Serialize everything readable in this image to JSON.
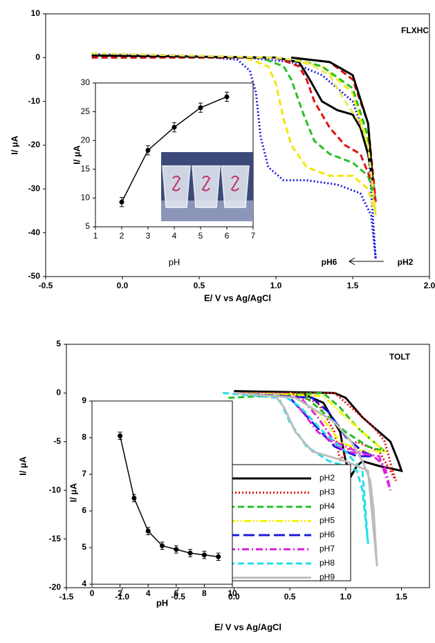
{
  "chart_data": [
    {
      "type": "line",
      "xlabel": "E/ V  vs Ag/AgCl",
      "ylabel": "I/ µA",
      "annotations": [
        "FLXHC",
        "pH6",
        "pH2"
      ],
      "xlim": [
        -0.5,
        2.0
      ],
      "ylim": [
        -50,
        10
      ],
      "xticks": [
        -0.5,
        {
          "value": 0,
          "label": "0.0"
        },
        0.5,
        {
          "value": 1,
          "label": "1.0"
        },
        1.5,
        {
          "value": 2,
          "label": "2.0"
        }
      ],
      "yticks": [
        -50,
        -40,
        -30,
        -20,
        -10,
        0,
        10
      ],
      "grid": false,
      "series": [
        {
          "color": "#1a1adc",
          "style": "dotted",
          "x": [
            -0.2,
            0.5,
            0.75,
            0.83,
            0.87,
            0.9,
            0.95,
            1.05,
            1.2,
            1.4,
            1.55,
            1.62,
            1.65,
            1.6,
            1.5,
            1.3,
            1.1,
            0.8
          ],
          "values": [
            0.8,
            0.3,
            -0.5,
            -3,
            -8,
            -18,
            -25,
            -28,
            -28,
            -29,
            -31,
            -36,
            -46,
            -20,
            -10,
            -4,
            -1,
            0
          ]
        },
        {
          "color": "#f5e600",
          "style": "dashed",
          "x": [
            -0.2,
            0.8,
            0.95,
            1.0,
            1.05,
            1.1,
            1.2,
            1.35,
            1.5,
            1.6,
            1.65,
            1.6,
            1.5,
            1.3,
            1.0
          ],
          "values": [
            0.5,
            0,
            -2,
            -6,
            -14,
            -20,
            -25,
            -27,
            -27,
            -30,
            -36,
            -20,
            -8,
            -2,
            0
          ]
        },
        {
          "color": "#22c022",
          "style": "dashed",
          "x": [
            -0.2,
            0.9,
            1.05,
            1.1,
            1.18,
            1.25,
            1.35,
            1.5,
            1.6,
            1.65,
            1.6,
            1.5,
            1.3,
            1.1
          ],
          "values": [
            0,
            0,
            -2,
            -5,
            -13,
            -19,
            -22,
            -24,
            -27,
            -33,
            -18,
            -7,
            -2,
            0
          ]
        },
        {
          "color": "#e01010",
          "style": "dashed",
          "x": [
            -0.2,
            1.0,
            1.15,
            1.2,
            1.25,
            1.35,
            1.45,
            1.55,
            1.62,
            1.65,
            1.6,
            1.5,
            1.35,
            1.1
          ],
          "values": [
            0,
            0,
            -2,
            -5,
            -10,
            -16,
            -20,
            -22,
            -28,
            -33,
            -15,
            -5,
            -1,
            0
          ]
        },
        {
          "color": "#000000",
          "style": "solid",
          "x": [
            -0.2,
            1.0,
            1.15,
            1.22,
            1.3,
            1.4,
            1.5,
            1.55,
            1.6,
            1.63,
            1.6,
            1.5,
            1.35,
            1.1
          ],
          "values": [
            0.5,
            0,
            -1,
            -5,
            -10,
            -12,
            -13,
            -16,
            -22,
            -28,
            -15,
            -4,
            -1,
            0
          ]
        },
        {
          "color": "#e8e860",
          "style": "dashed",
          "x": [
            -0.2,
            1.0,
            1.2,
            1.35,
            1.45,
            1.55,
            1.6,
            1.65
          ],
          "values": [
            1,
            0,
            -1,
            -4,
            -10,
            -15,
            -20,
            -36
          ]
        }
      ]
    },
    {
      "type": "line",
      "xlabel": "pH",
      "ylabel": "I/ µA",
      "xlim": [
        1,
        7
      ],
      "ylim": [
        5,
        30
      ],
      "xticks": [
        1,
        2,
        3,
        4,
        5,
        6,
        7
      ],
      "yticks": [
        5,
        10,
        15,
        20,
        25,
        30
      ],
      "marker": "circle",
      "color": "#000000",
      "x": [
        2,
        3,
        4,
        5,
        6
      ],
      "values": [
        9.3,
        18.3,
        22.3,
        25.7,
        27.6
      ],
      "errors": [
        0.8,
        0.8,
        0.8,
        0.8,
        0.8
      ]
    },
    {
      "type": "line",
      "xlabel": "E/ V vs Ag/AgCl",
      "ylabel": "I/ µA",
      "annotations": [
        "TOLT"
      ],
      "xlim": [
        -1.5,
        1.75
      ],
      "ylim": [
        -20,
        5
      ],
      "xticks": [
        -1.5,
        {
          "value": -1,
          "label": "-1.0"
        },
        -0.5,
        {
          "value": 0,
          "label": "0.0"
        },
        0.5,
        {
          "value": 1,
          "label": "1.0"
        },
        1.5
      ],
      "yticks": [
        -20,
        -15,
        -10,
        -5,
        0,
        5
      ],
      "grid": false,
      "legend": "lower right",
      "series": [
        {
          "name": "pH2",
          "color": "#000000",
          "style": "solid",
          "x": [
            0,
            0.9,
            1.0,
            1.15,
            1.3,
            1.4,
            1.47,
            1.5,
            1.3,
            1.15,
            1.1,
            1.05,
            1.0,
            0.95,
            0.8,
            0.6
          ],
          "values": [
            0.2,
            0,
            -0.5,
            -2.5,
            -4,
            -5,
            -7,
            -8,
            -7.5,
            -7,
            -7.5,
            -8.5,
            -7,
            -4,
            -1,
            0
          ]
        },
        {
          "name": "pH3",
          "color": "#e01010",
          "style": "dotted",
          "x": [
            0,
            0.9,
            1.05,
            1.25,
            1.35,
            1.42,
            1.45,
            1.3,
            1.1,
            1.0,
            0.95,
            0.9,
            0.75,
            0.5
          ],
          "values": [
            0,
            0,
            -1.5,
            -3.5,
            -5,
            -8,
            -9,
            -6,
            -5,
            -6,
            -7,
            -4,
            -1,
            0
          ]
        },
        {
          "name": "pH4",
          "color": "#22c022",
          "style": "dashed",
          "x": [
            -0.05,
            0.8,
            0.95,
            1.1,
            1.25,
            1.35,
            1.2,
            1.0,
            0.8,
            0.6
          ],
          "values": [
            -0.5,
            0,
            -1.5,
            -3.5,
            -5,
            -6,
            -5.5,
            -4,
            -2,
            0
          ]
        },
        {
          "name": "pH5",
          "color": "#f5f500",
          "style": "dash-dot-dot",
          "x": [
            0,
            0.8,
            1.0,
            1.2,
            1.35,
            1.15,
            0.95,
            0.75,
            0.5
          ],
          "values": [
            0,
            -0.3,
            -2.5,
            -4.5,
            -6,
            -6,
            -5,
            -2,
            0
          ]
        },
        {
          "name": "pH6",
          "color": "#1a1adc",
          "style": "long-dash",
          "x": [
            0,
            0.7,
            0.85,
            1.0,
            1.15,
            1.25,
            1.1,
            0.9,
            0.7,
            0.5
          ],
          "values": [
            0,
            -0.5,
            -2,
            -4.5,
            -6,
            -6.5,
            -6.5,
            -5.5,
            -3,
            -0.5
          ]
        },
        {
          "name": "pH7",
          "color": "#e020e0",
          "style": "dash-dot",
          "x": [
            0,
            0.6,
            0.75,
            0.9,
            1.1,
            1.25,
            1.35,
            1.4,
            1.3,
            1.0,
            0.75,
            0.55
          ],
          "values": [
            0,
            -0.5,
            -2.5,
            -5,
            -6,
            -6.5,
            -7.5,
            -10,
            -6.5,
            -6,
            -4,
            -1
          ]
        },
        {
          "name": "pH8",
          "color": "#20e0e8",
          "style": "dashed",
          "x": [
            -0.1,
            0.4,
            0.5,
            0.65,
            0.85,
            1.0,
            1.1,
            1.15,
            1.2,
            1.15,
            1.0,
            0.8,
            0.6,
            0.45
          ],
          "values": [
            0,
            -0.5,
            -3,
            -5.5,
            -7,
            -7.5,
            -8,
            -10,
            -15.5,
            -8,
            -6,
            -4,
            -1.5,
            -0.3
          ]
        },
        {
          "name": "pH9",
          "color": "#bdbdbd",
          "style": "solid",
          "x": [
            0,
            0.55,
            0.9,
            1.05,
            1.15,
            1.22,
            1.25,
            1.28,
            1.2,
            1.0,
            0.7,
            0.55,
            0.45,
            0.35
          ],
          "values": [
            0,
            -0.5,
            -3,
            -5,
            -7,
            -9,
            -12,
            -17.8,
            -8,
            -7,
            -6,
            -4,
            -1.5,
            0
          ]
        }
      ]
    },
    {
      "type": "line",
      "xlabel": "pH",
      "ylabel": "I/ µA",
      "xlim": [
        0,
        10
      ],
      "ylim": [
        4,
        9
      ],
      "xticks": [
        0,
        2,
        4,
        6,
        8,
        10
      ],
      "yticks": [
        4,
        5,
        6,
        7,
        8,
        9
      ],
      "marker": "circle",
      "color": "#000000",
      "x": [
        2,
        3,
        4,
        5,
        6,
        7,
        8,
        9
      ],
      "values": [
        8.05,
        6.35,
        5.45,
        5.05,
        4.95,
        4.85,
        4.8,
        4.75
      ],
      "errors": [
        0.1,
        0.1,
        0.1,
        0.1,
        0.1,
        0.1,
        0.1,
        0.1
      ]
    }
  ]
}
